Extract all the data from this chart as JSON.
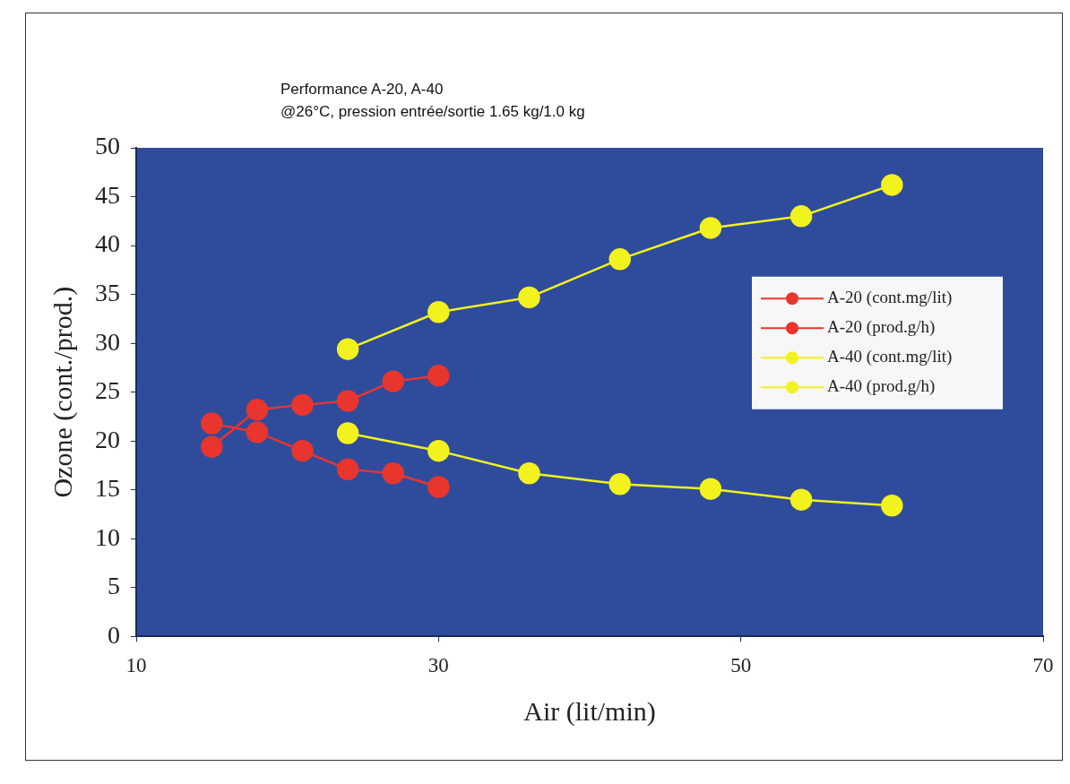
{
  "chart_data": {
    "type": "line",
    "title": "Performance A-20, A-40",
    "subtitle": "@26°C, pression entrée/sortie 1.65 kg/1.0 kg",
    "xlabel": "Air (lit/min)",
    "ylabel": "Ozone (cont./prod.)",
    "xlim": [
      10,
      70
    ],
    "xticks": [
      10,
      30,
      50,
      70
    ],
    "ylim": [
      0,
      50
    ],
    "yticks": [
      0,
      5,
      10,
      15,
      20,
      25,
      30,
      35,
      40,
      45,
      50
    ],
    "grid": false,
    "legend": "right",
    "marker": "circle",
    "series": [
      {
        "name": "A-20 (cont.mg/lit)",
        "color": "#e8352e",
        "x": [
          15,
          18,
          21,
          24,
          27,
          30
        ],
        "values": [
          21.8,
          20.9,
          19.0,
          17.1,
          16.7,
          15.3
        ]
      },
      {
        "name": "A-20 (prod.g/h)",
        "color": "#e8352e",
        "x": [
          15,
          18,
          21,
          24,
          27,
          30
        ],
        "values": [
          19.4,
          23.2,
          23.7,
          24.1,
          26.1,
          26.7
        ]
      },
      {
        "name": "A-40 (cont.mg/lit)",
        "color": "#f2f21e",
        "x": [
          24,
          30,
          36,
          42,
          48,
          54,
          60
        ],
        "values": [
          20.8,
          19.0,
          16.7,
          15.6,
          15.1,
          14.0,
          13.4
        ]
      },
      {
        "name": "A-40 (prod.g/h)",
        "color": "#f2f21e",
        "x": [
          24,
          30,
          36,
          42,
          48,
          54,
          60
        ],
        "values": [
          29.4,
          33.2,
          34.7,
          38.6,
          41.8,
          43.0,
          46.2
        ]
      }
    ]
  }
}
